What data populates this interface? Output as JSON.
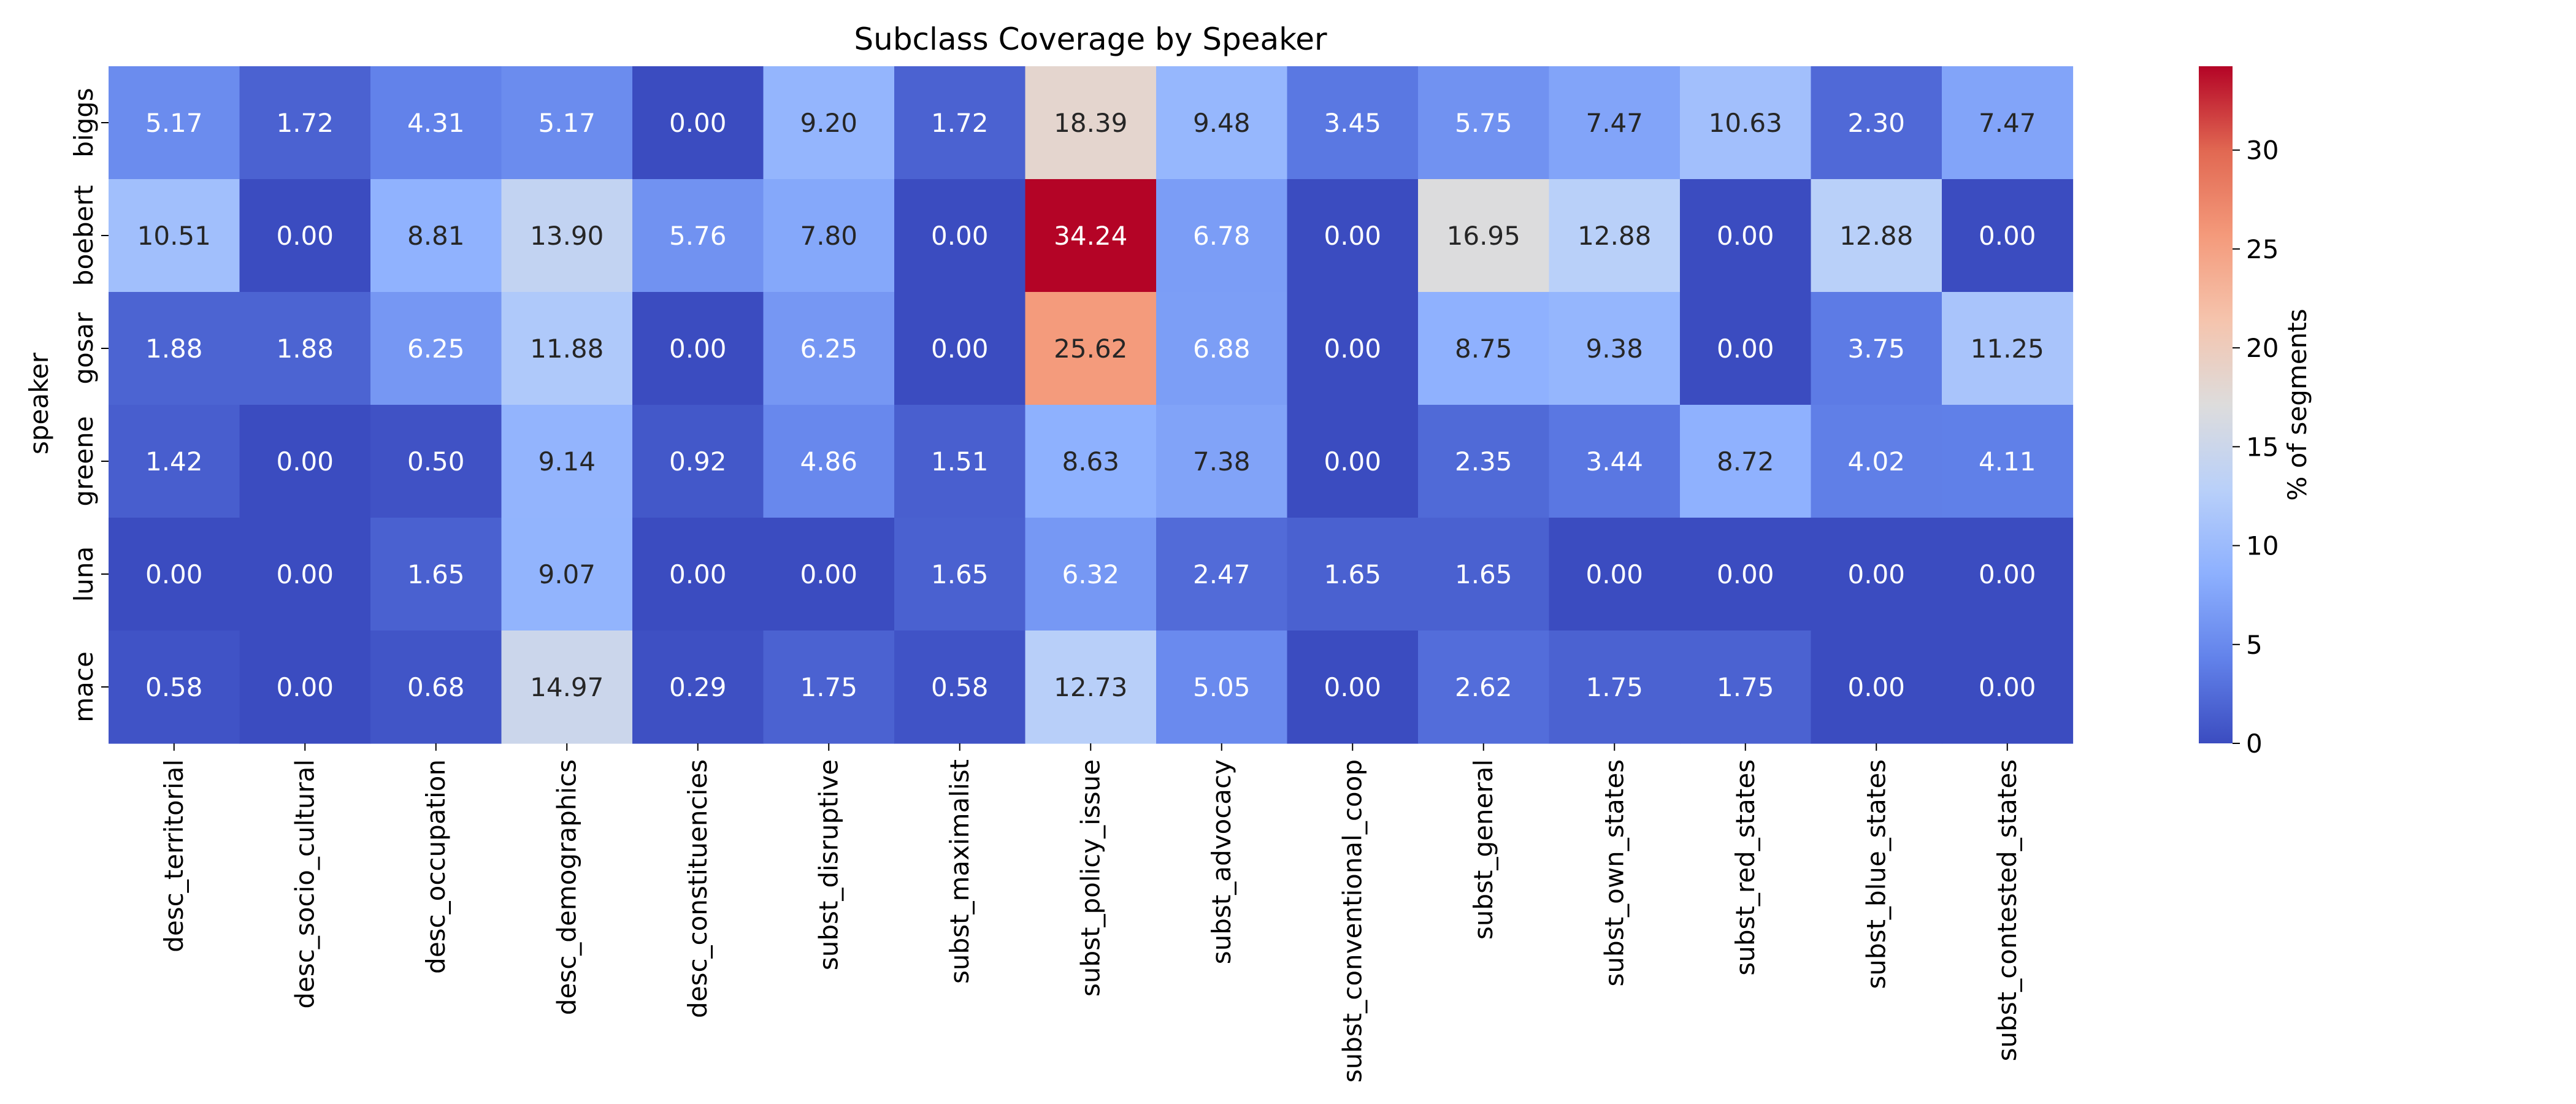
{
  "chart_data": {
    "type": "heatmap",
    "title": "Subclass Coverage by Speaker",
    "xlabel": "",
    "ylabel": "speaker",
    "rows": [
      "biggs",
      "boebert",
      "gosar",
      "greene",
      "luna",
      "mace"
    ],
    "columns": [
      "desc_territorial",
      "desc_socio_cultural",
      "desc_occupation",
      "desc_demographics",
      "desc_constituencies",
      "subst_disruptive",
      "subst_maximalist",
      "subst_policy_issue",
      "subst_advocacy",
      "subst_conventional_coop",
      "subst_general",
      "subst_own_states",
      "subst_red_states",
      "subst_blue_states",
      "subst_contested_states"
    ],
    "values": [
      [
        5.17,
        1.72,
        4.31,
        5.17,
        0.0,
        9.2,
        1.72,
        18.39,
        9.48,
        3.45,
        5.75,
        7.47,
        10.63,
        2.3,
        7.47
      ],
      [
        10.51,
        0.0,
        8.81,
        13.9,
        5.76,
        7.8,
        0.0,
        34.24,
        6.78,
        0.0,
        16.95,
        12.88,
        0.0,
        12.88,
        0.0
      ],
      [
        1.88,
        1.88,
        6.25,
        11.88,
        0.0,
        6.25,
        0.0,
        25.62,
        6.88,
        0.0,
        8.75,
        9.38,
        0.0,
        3.75,
        11.25
      ],
      [
        1.42,
        0.0,
        0.5,
        9.14,
        0.92,
        4.86,
        1.51,
        8.63,
        7.38,
        0.0,
        2.35,
        3.44,
        8.72,
        4.02,
        4.11
      ],
      [
        0.0,
        0.0,
        1.65,
        9.07,
        0.0,
        0.0,
        1.65,
        6.32,
        2.47,
        1.65,
        1.65,
        0.0,
        0.0,
        0.0,
        0.0
      ],
      [
        0.58,
        0.0,
        0.68,
        14.97,
        0.29,
        1.75,
        0.58,
        12.73,
        5.05,
        0.0,
        2.62,
        1.75,
        1.75,
        0.0,
        0.0
      ]
    ],
    "colorbar": {
      "label": "% of segments",
      "range": [
        0,
        34.24
      ],
      "ticks": [
        0,
        5,
        10,
        15,
        20,
        25,
        30
      ],
      "colormap": "coolwarm",
      "stops": [
        "#3b4cc0",
        "#6282ea",
        "#8db0fe",
        "#b9d0f9",
        "#dddcdc",
        "#f5c4ad",
        "#f49a7b",
        "#e16852",
        "#b40426"
      ]
    },
    "annotation_format": "2 decimals",
    "grid": false,
    "legend": "colorbar right"
  }
}
